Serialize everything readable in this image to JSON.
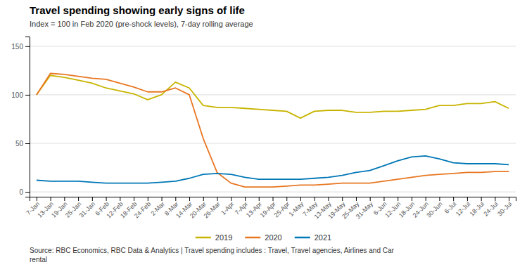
{
  "chart_data": {
    "type": "line",
    "title": "Travel spending showing early signs of life",
    "subtitle": "Index = 100 in Feb 2020 (pre-shock levels), 7-day rolling average",
    "annotations": [
      "Source: RBC Economics, RBC Data & Analytics | Travel spending includes : Travel, Travel agencies, Airlines and Car\nrental"
    ],
    "categories": [
      "7-Jan",
      "13-Jan",
      "19-Jan",
      "25-Jan",
      "31-Jan",
      "6-Feb",
      "12-Feb",
      "18-Feb",
      "24-Feb",
      "2-Mar",
      "8-Mar",
      "14-Mar",
      "20-Mar",
      "26-Mar",
      "1-Apr",
      "7-Apr",
      "13-Apr",
      "19-Apr",
      "25-Apr",
      "1-May",
      "7-May",
      "13-May",
      "19-May",
      "25-May",
      "31-May",
      "6-Jun",
      "12-Jun",
      "18-Jun",
      "24-Jun",
      "30-Jun",
      "6-Jul",
      "12-Jul",
      "18-Jul",
      "24-Jul",
      "30-Jul"
    ],
    "series": [
      {
        "name": "2019",
        "color": "#c8b400",
        "values": [
          100,
          120,
          118,
          115,
          112,
          107,
          104,
          101,
          95,
          100,
          113,
          107,
          89,
          87,
          87,
          86,
          85,
          84,
          83,
          76,
          83,
          84,
          84,
          82,
          82,
          83,
          83,
          84,
          85,
          89,
          89,
          91,
          91,
          93,
          86
        ]
      },
      {
        "name": "2020",
        "color": "#e87722",
        "values": [
          100,
          122,
          121,
          119,
          117,
          116,
          112,
          108,
          103,
          103,
          107,
          100,
          55,
          20,
          9,
          5,
          5,
          5,
          6,
          7,
          7,
          8,
          9,
          9,
          9,
          11,
          13,
          15,
          17,
          18,
          19,
          20,
          20,
          21,
          21
        ]
      },
      {
        "name": "2021",
        "color": "#0077b6",
        "values": [
          12,
          11,
          11,
          11,
          10,
          9,
          9,
          9,
          9,
          10,
          11,
          14,
          18,
          19,
          18,
          15,
          13,
          13,
          13,
          13,
          14,
          15,
          17,
          20,
          22,
          27,
          32,
          36,
          37,
          34,
          30,
          29,
          29,
          29,
          28
        ]
      }
    ],
    "ylim": [
      -5,
      160
    ],
    "yticks": [
      0,
      50,
      100,
      150
    ],
    "grid": true,
    "legend": "bottom"
  }
}
